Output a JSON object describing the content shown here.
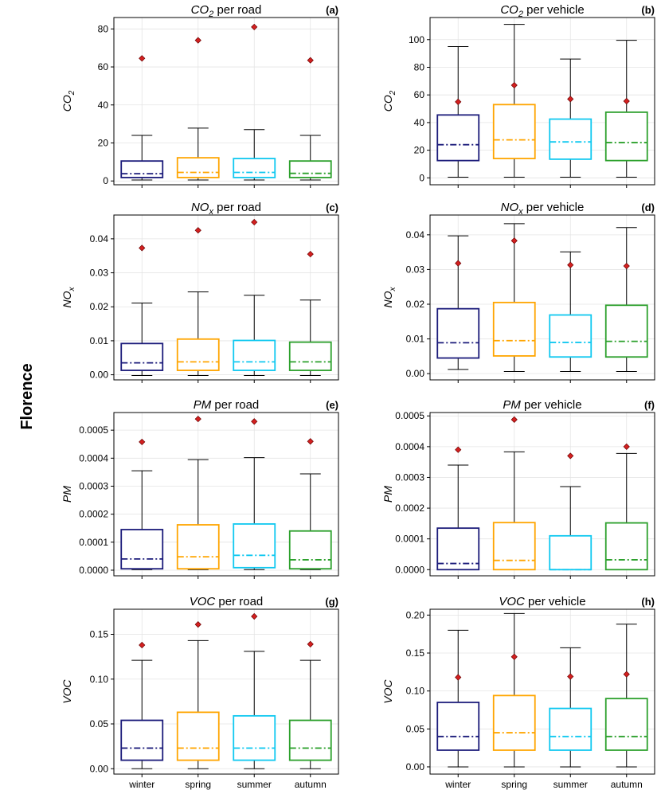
{
  "figure": {
    "city_label": "Florence"
  },
  "chart_data": [
    {
      "id": "a",
      "type": "box",
      "letter": "(a)",
      "title_var": "CO",
      "title_sub": "2",
      "title_rest": " per road",
      "ylabel": "CO",
      "ylabel_sub": "2",
      "ylim": [
        -2,
        86
      ],
      "yticks": [
        "0",
        "20",
        "40",
        "60",
        "80"
      ],
      "categories": [
        "winter",
        "spring",
        "summer",
        "autumn"
      ],
      "series": [
        {
          "name": "winter",
          "whislo": 0.5,
          "q1": 1.8,
          "median": 3.8,
          "q3": 10.5,
          "whishi": 24,
          "mean": 64.5
        },
        {
          "name": "spring",
          "whislo": 0.5,
          "q1": 1.8,
          "median": 4.5,
          "q3": 12.2,
          "whishi": 27.8,
          "mean": 74
        },
        {
          "name": "summer",
          "whislo": 0.5,
          "q1": 1.8,
          "median": 4.5,
          "q3": 11.8,
          "whishi": 27,
          "mean": 81
        },
        {
          "name": "autumn",
          "whislo": 0.5,
          "q1": 1.8,
          "median": 4.0,
          "q3": 10.5,
          "whishi": 24,
          "mean": 63.5
        }
      ]
    },
    {
      "id": "b",
      "type": "box",
      "letter": "(b)",
      "title_var": "CO",
      "title_sub": "2",
      "title_rest": " per vehicle",
      "ylabel": "CO",
      "ylabel_sub": "2",
      "ylim": [
        -5,
        116
      ],
      "yticks": [
        "0",
        "20",
        "40",
        "60",
        "80",
        "100"
      ],
      "categories": [
        "winter",
        "spring",
        "summer",
        "autumn"
      ],
      "series": [
        {
          "name": "winter",
          "whislo": 0.5,
          "q1": 12.5,
          "median": 24,
          "q3": 45.5,
          "whishi": 95,
          "mean": 55
        },
        {
          "name": "spring",
          "whislo": 0.5,
          "q1": 14,
          "median": 27.5,
          "q3": 53,
          "whishi": 111,
          "mean": 67
        },
        {
          "name": "summer",
          "whislo": 0.5,
          "q1": 13.5,
          "median": 26,
          "q3": 42.5,
          "whishi": 86,
          "mean": 57
        },
        {
          "name": "autumn",
          "whislo": 0.5,
          "q1": 12.5,
          "median": 25.5,
          "q3": 47.5,
          "whishi": 99.5,
          "mean": 55.5
        }
      ]
    },
    {
      "id": "c",
      "type": "box",
      "letter": "(c)",
      "title_var": "NO",
      "title_sub": "x",
      "title_rest": " per road",
      "ylabel": "NO",
      "ylabel_sub": "x",
      "ylim": [
        -0.0015,
        0.047
      ],
      "yticks": [
        "0.00",
        "0.01",
        "0.02",
        "0.03",
        "0.04"
      ],
      "categories": [
        "winter",
        "spring",
        "summer",
        "autumn"
      ],
      "series": [
        {
          "name": "winter",
          "whislo": -0.0002,
          "q1": 0.0013,
          "median": 0.0035,
          "q3": 0.0092,
          "whishi": 0.0211,
          "mean": 0.0373
        },
        {
          "name": "spring",
          "whislo": -0.0002,
          "q1": 0.0013,
          "median": 0.0038,
          "q3": 0.0105,
          "whishi": 0.0244,
          "mean": 0.0425
        },
        {
          "name": "summer",
          "whislo": -0.0002,
          "q1": 0.0013,
          "median": 0.0038,
          "q3": 0.0101,
          "whishi": 0.0234,
          "mean": 0.0449
        },
        {
          "name": "autumn",
          "whislo": -0.0002,
          "q1": 0.0013,
          "median": 0.0038,
          "q3": 0.0096,
          "whishi": 0.022,
          "mean": 0.0355
        }
      ]
    },
    {
      "id": "d",
      "type": "box",
      "letter": "(d)",
      "title_var": "NO",
      "title_sub": "x",
      "title_rest": " per vehicle",
      "ylabel": "NO",
      "ylabel_sub": "x",
      "ylim": [
        -0.0018,
        0.0457
      ],
      "yticks": [
        "0.00",
        "0.01",
        "0.02",
        "0.03",
        "0.04"
      ],
      "categories": [
        "winter",
        "spring",
        "summer",
        "autumn"
      ],
      "series": [
        {
          "name": "winter",
          "whislo": 0.0012,
          "q1": 0.0045,
          "median": 0.0089,
          "q3": 0.0187,
          "whishi": 0.0397,
          "mean": 0.0318
        },
        {
          "name": "spring",
          "whislo": 0.0006,
          "q1": 0.0051,
          "median": 0.0095,
          "q3": 0.0205,
          "whishi": 0.0432,
          "mean": 0.0383
        },
        {
          "name": "summer",
          "whislo": 0.0006,
          "q1": 0.0048,
          "median": 0.009,
          "q3": 0.0169,
          "whishi": 0.0351,
          "mean": 0.0313
        },
        {
          "name": "autumn",
          "whislo": 0.0006,
          "q1": 0.0048,
          "median": 0.0093,
          "q3": 0.0197,
          "whishi": 0.0421,
          "mean": 0.031
        }
      ]
    },
    {
      "id": "e",
      "type": "box",
      "letter": "(e)",
      "title_var": "PM",
      "title_sub": "",
      "title_rest": " per road",
      "ylabel": "PM",
      "ylabel_sub": "",
      "ylim": [
        -2e-05,
        0.000563
      ],
      "yticks": [
        "0.0000",
        "0.0001",
        "0.0002",
        "0.0003",
        "0.0004",
        "0.0005"
      ],
      "categories": [
        "winter",
        "spring",
        "summer",
        "autumn"
      ],
      "series": [
        {
          "name": "winter",
          "whislo": 2e-06,
          "q1": 5e-06,
          "median": 4e-05,
          "q3": 0.000145,
          "whishi": 0.000355,
          "mean": 0.000458
        },
        {
          "name": "spring",
          "whislo": 2e-06,
          "q1": 5e-06,
          "median": 4.8e-05,
          "q3": 0.000162,
          "whishi": 0.000395,
          "mean": 0.00054
        },
        {
          "name": "summer",
          "whislo": 2e-06,
          "q1": 9e-06,
          "median": 5.3e-05,
          "q3": 0.000165,
          "whishi": 0.000402,
          "mean": 0.000531
        },
        {
          "name": "autumn",
          "whislo": 2e-06,
          "q1": 5e-06,
          "median": 3.7e-05,
          "q3": 0.00014,
          "whishi": 0.000344,
          "mean": 0.00046
        }
      ]
    },
    {
      "id": "f",
      "type": "box",
      "letter": "(f)",
      "title_var": "PM",
      "title_sub": "",
      "title_rest": " per vehicle",
      "ylabel": "PM",
      "ylabel_sub": "",
      "ylim": [
        -2e-05,
        0.000511
      ],
      "yticks": [
        "0.0000",
        "0.0001",
        "0.0002",
        "0.0003",
        "0.0004",
        "0.0005"
      ],
      "categories": [
        "winter",
        "spring",
        "summer",
        "autumn"
      ],
      "series": [
        {
          "name": "winter",
          "whislo": 0.0,
          "q1": 0.0,
          "median": 2e-05,
          "q3": 0.000135,
          "whishi": 0.00034,
          "mean": 0.00039
        },
        {
          "name": "spring",
          "whislo": 0.0,
          "q1": 0.0,
          "median": 3e-05,
          "q3": 0.000153,
          "whishi": 0.000383,
          "mean": 0.000488
        },
        {
          "name": "summer",
          "whislo": 0.0,
          "q1": 0.0,
          "median": 0.0,
          "q3": 0.00011,
          "whishi": 0.00027,
          "mean": 0.00037
        },
        {
          "name": "autumn",
          "whislo": 0.0,
          "q1": 0.0,
          "median": 3.2e-05,
          "q3": 0.000152,
          "whishi": 0.000378,
          "mean": 0.0004
        }
      ]
    },
    {
      "id": "g",
      "type": "box",
      "letter": "(g)",
      "title_var": "VOC",
      "title_sub": "",
      "title_rest": " per road",
      "ylabel": "VOC",
      "ylabel_sub": "",
      "ylim": [
        -0.006,
        0.178
      ],
      "yticks": [
        "0.00",
        "0.05",
        "0.10",
        "0.15"
      ],
      "categories": [
        "winter",
        "spring",
        "summer",
        "autumn"
      ],
      "series": [
        {
          "name": "winter",
          "whislo": 0.0,
          "q1": 0.0095,
          "median": 0.023,
          "q3": 0.054,
          "whishi": 0.121,
          "mean": 0.138
        },
        {
          "name": "spring",
          "whislo": 0.0,
          "q1": 0.0095,
          "median": 0.023,
          "q3": 0.063,
          "whishi": 0.143,
          "mean": 0.161
        },
        {
          "name": "summer",
          "whislo": 0.0,
          "q1": 0.0095,
          "median": 0.023,
          "q3": 0.059,
          "whishi": 0.131,
          "mean": 0.17
        },
        {
          "name": "autumn",
          "whislo": 0.0,
          "q1": 0.0095,
          "median": 0.023,
          "q3": 0.054,
          "whishi": 0.121,
          "mean": 0.139
        }
      ]
    },
    {
      "id": "h",
      "type": "box",
      "letter": "(h)",
      "title_var": "VOC",
      "title_sub": "",
      "title_rest": " per vehicle",
      "ylabel": "VOC",
      "ylabel_sub": "",
      "ylim": [
        -0.0095,
        0.2077
      ],
      "yticks": [
        "0.00",
        "0.05",
        "0.10",
        "0.15",
        "0.20"
      ],
      "categories": [
        "winter",
        "spring",
        "summer",
        "autumn"
      ],
      "series": [
        {
          "name": "winter",
          "whislo": 0.0,
          "q1": 0.022,
          "median": 0.04,
          "q3": 0.085,
          "whishi": 0.18,
          "mean": 0.118
        },
        {
          "name": "spring",
          "whislo": 0.0,
          "q1": 0.022,
          "median": 0.045,
          "q3": 0.094,
          "whishi": 0.202,
          "mean": 0.145
        },
        {
          "name": "summer",
          "whislo": 0.0,
          "q1": 0.022,
          "median": 0.04,
          "q3": 0.077,
          "whishi": 0.157,
          "mean": 0.119
        },
        {
          "name": "autumn",
          "whislo": 0.0,
          "q1": 0.022,
          "median": 0.04,
          "q3": 0.09,
          "whishi": 0.188,
          "mean": 0.122
        }
      ]
    }
  ],
  "series_colors": {
    "winter": "#1b1b7a",
    "spring": "#ffa500",
    "summer": "#10c8f0",
    "autumn": "#2ca02c",
    "mean_marker": "#d42020"
  }
}
